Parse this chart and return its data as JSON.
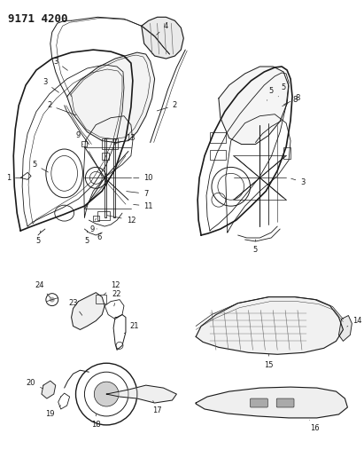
{
  "title_text": "9171 4200",
  "bg_color": "#ffffff",
  "line_color": "#1a1a1a",
  "label_fontsize": 6.0,
  "fig_width": 4.11,
  "fig_height": 5.33,
  "dpi": 100
}
